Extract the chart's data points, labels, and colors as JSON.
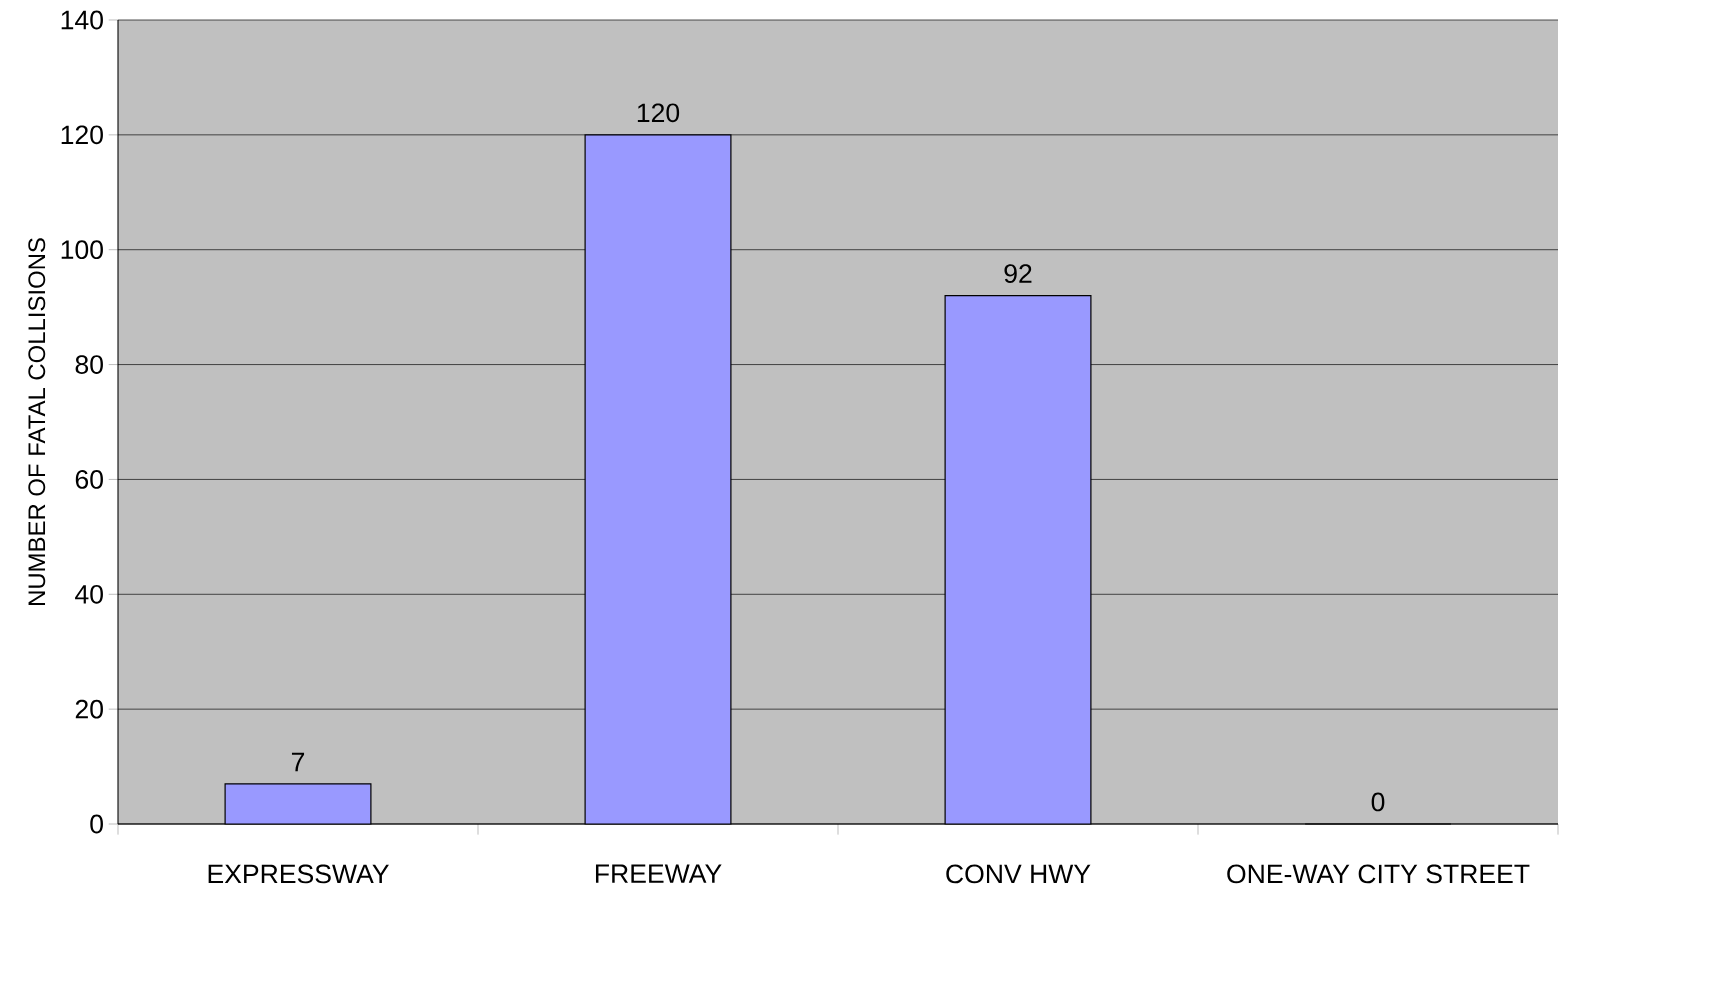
{
  "chart_data": {
    "type": "bar",
    "ylabel": "NUMBER OF FATAL COLLISIONS",
    "categories": [
      "EXPRESSWAY",
      "FREEWAY",
      "CONV HWY",
      "ONE-WAY CITY STREET"
    ],
    "values": [
      7,
      120,
      92,
      0
    ],
    "color": "#9999ff",
    "ylim": [
      0,
      140
    ],
    "yticks": [
      0,
      20,
      40,
      60,
      80,
      100,
      120,
      140
    ],
    "grid": "y",
    "data_labels": true
  }
}
